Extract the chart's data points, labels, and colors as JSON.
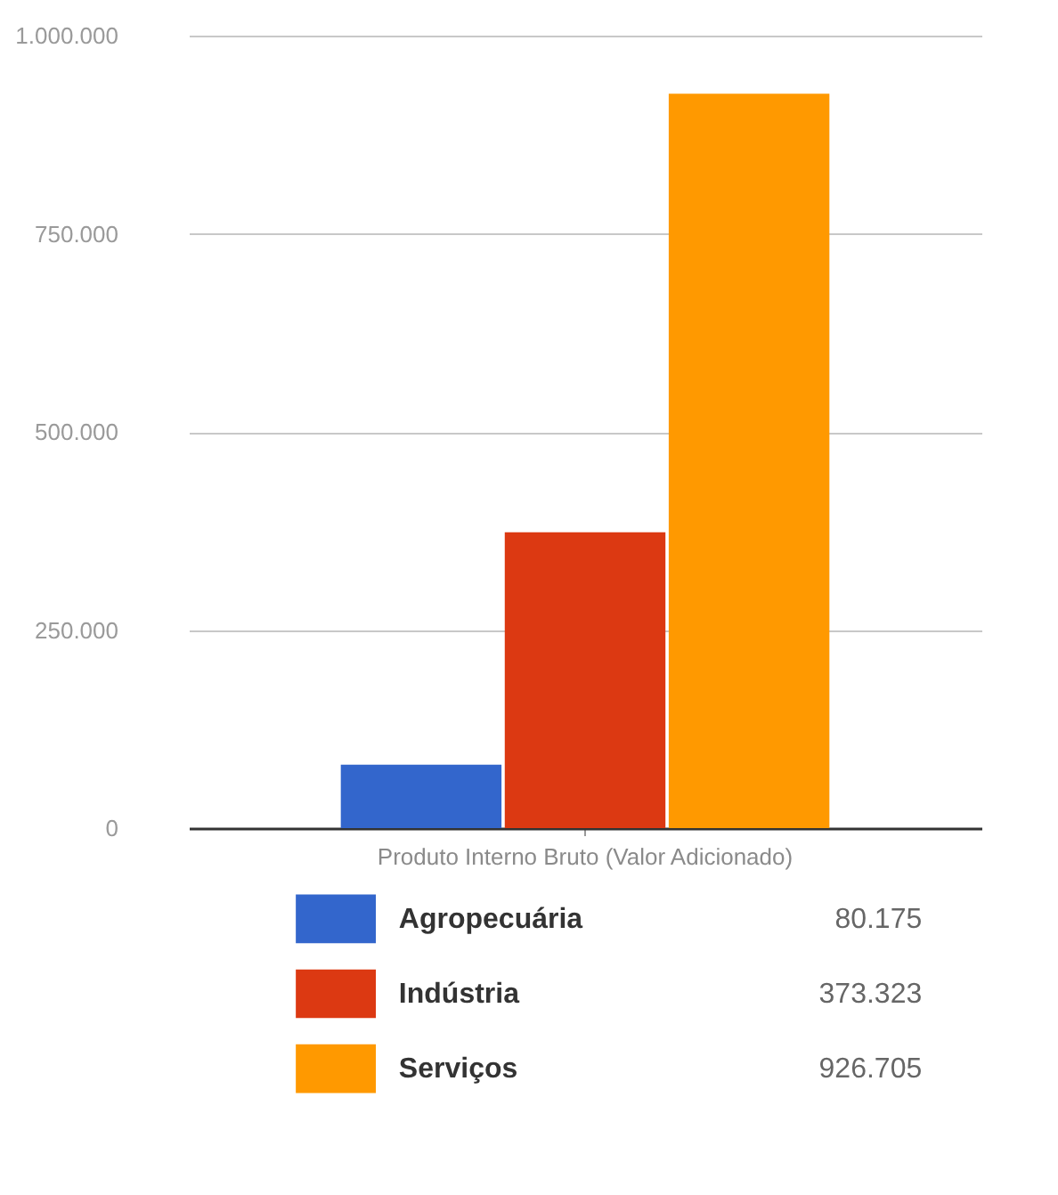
{
  "chart_data": {
    "type": "bar",
    "categories": [
      "Produto Interno Bruto (Valor Adicionado)"
    ],
    "series": [
      {
        "name": "Agropecuária",
        "color": "#3366cc",
        "values": [
          80175
        ]
      },
      {
        "name": "Indústria",
        "color": "#dc3912",
        "values": [
          373323
        ]
      },
      {
        "name": "Serviços",
        "color": "#ff9900",
        "values": [
          926705
        ]
      }
    ],
    "annotations": [
      "80.175",
      "373.323",
      "926.705"
    ],
    "ylim": [
      0,
      1000000
    ],
    "yticks": [
      {
        "value": 0,
        "label": "0"
      },
      {
        "value": 250000,
        "label": "250.000"
      },
      {
        "value": 500000,
        "label": "500.000"
      },
      {
        "value": 750000,
        "label": "750.000"
      },
      {
        "value": 1000000,
        "label": "1.000.000"
      }
    ],
    "grid": "y",
    "legend": "bottom"
  }
}
